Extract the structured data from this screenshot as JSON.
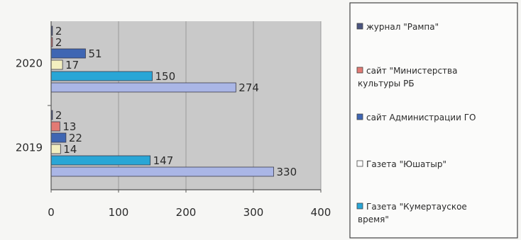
{
  "chart_data": {
    "type": "bar",
    "orientation": "horizontal",
    "title": "",
    "xlabel": "",
    "ylabel": "",
    "categories": [
      "2019",
      "2020"
    ],
    "xlim": [
      0,
      400
    ],
    "xticks": [
      0,
      100,
      200,
      300,
      400
    ],
    "grid": true,
    "legend_position": "right",
    "series": [
      {
        "name": "журнал \"Рампа\"",
        "values": [
          2,
          2
        ],
        "color": "#4a5580"
      },
      {
        "name": "сайт \"Министерства культуры РБ",
        "values": [
          13,
          2
        ],
        "color": "#e27a74"
      },
      {
        "name": "сайт Администрации ГО",
        "values": [
          22,
          51
        ],
        "color": "#3f66b3"
      },
      {
        "name": "Газета \"Юшатыр\"",
        "values": [
          14,
          17
        ],
        "color": "#f3efc0"
      },
      {
        "name": "Газета \"Кумертауское время\"",
        "values": [
          147,
          150
        ],
        "color": "#29a6d6"
      },
      {
        "name": "",
        "values": [
          330,
          274
        ],
        "color": "#aab6e6"
      }
    ],
    "data_labels": [
      [
        "2",
        "13",
        "22",
        "14",
        "147",
        "330"
      ],
      [
        "2",
        "2",
        "51",
        "17",
        "150",
        "274"
      ]
    ],
    "legend": [
      {
        "label": "журнал \"Рампа\"",
        "color": "#4a5580"
      },
      {
        "label": "сайт \"Министерства культуры РБ",
        "color": "#e27a74"
      },
      {
        "label": "сайт Администрации ГО",
        "color": "#3f66b3"
      },
      {
        "label": "Газета \"Юшатыр\"",
        "color": "#ffffff"
      },
      {
        "label": "Газета \"Кумертауское время\"",
        "color": "#29a6d6"
      }
    ],
    "plot_background": "#c9c9c9"
  }
}
